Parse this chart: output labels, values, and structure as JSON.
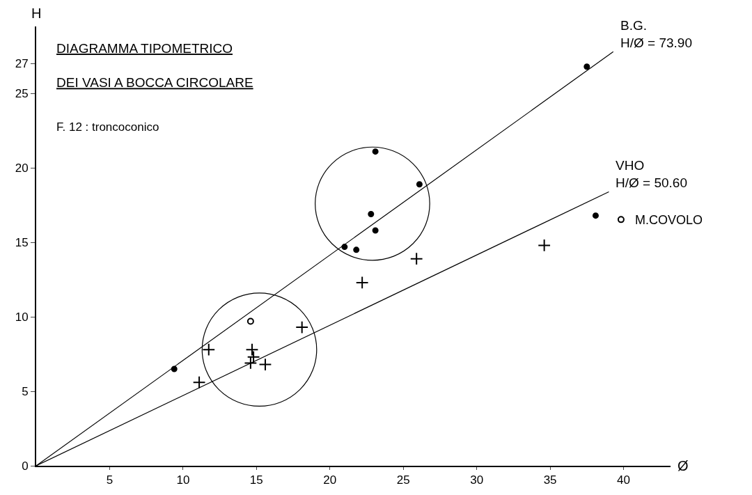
{
  "chart_data": {
    "type": "scatter",
    "title": "DIAGRAMMA TIPOMETRICO\nDEI VASI A BOCCA CIRCOLARE",
    "subtitle": "F. 12 : troncoconico",
    "xlabel": "Ø",
    "ylabel": "H",
    "xlim": [
      0,
      43.2
    ],
    "ylim": [
      0,
      29.5
    ],
    "xticks": [
      5,
      10,
      15,
      20,
      25,
      30,
      35,
      40
    ],
    "yticks": [
      0,
      5,
      10,
      15,
      20,
      25,
      27
    ],
    "legend": "right",
    "series": [
      {
        "marker": "circle",
        "color": "#000000",
        "x": [
          9.4,
          21.0,
          21.8,
          22.8,
          23.1,
          23.1,
          26.1,
          37.5,
          38.1
        ],
        "values": [
          6.5,
          14.7,
          14.5,
          16.9,
          15.8,
          21.1,
          18.9,
          26.8,
          16.8
        ]
      },
      {
        "marker": "cross",
        "color": "#000000",
        "x": [
          11.1,
          11.75,
          14.6,
          14.7,
          14.8,
          15.6,
          18.1,
          22.2,
          25.9,
          34.6
        ],
        "values": [
          5.6,
          7.8,
          6.9,
          7.8,
          7.3,
          6.8,
          9.3,
          12.3,
          13.9,
          14.8
        ]
      },
      {
        "marker": "circle-open",
        "color": "#000000",
        "name": "M.COVOLO",
        "x": [
          14.6
        ],
        "values": [
          9.7
        ]
      },
      {
        "type": "line",
        "color": "#000000",
        "name": "B.G.\nH/Ø = 73.90",
        "x": [
          0,
          39.3
        ],
        "values": [
          0,
          27.8
        ]
      },
      {
        "type": "line",
        "color": "#000000",
        "name": "VHO\nH/Ø = 50.60",
        "x": [
          0,
          39.0
        ],
        "values": [
          0,
          18.4
        ]
      }
    ]
  }
}
